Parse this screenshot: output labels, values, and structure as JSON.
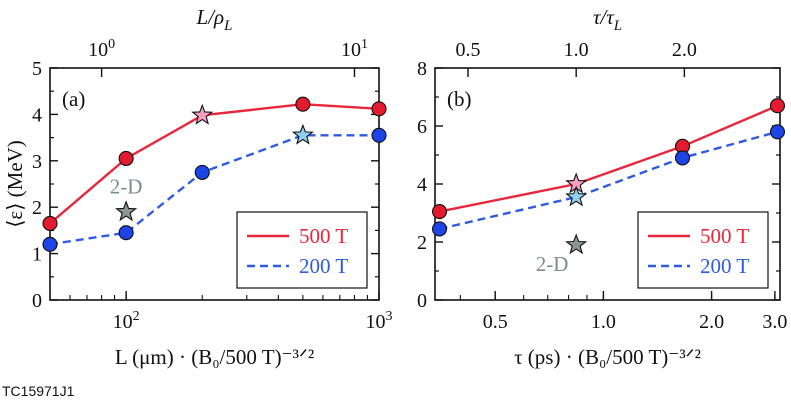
{
  "colors": {
    "red_line": "#e8273a",
    "blue_line": "#2d5be3",
    "red_marker": "#e31b2f",
    "blue_marker": "#1c44e6",
    "pink_star": "#f7a0c4",
    "light_blue_star": "#8fd0f0",
    "gray_star": "#8a9696",
    "gray_text": "#7d8d8d"
  },
  "caption": "TC15971J1",
  "chart_data": [
    {
      "id": "a",
      "type": "line",
      "panel_label": "(a)",
      "x_scale": "log",
      "xlim": [
        50,
        1000
      ],
      "ylim": [
        0,
        5
      ],
      "ylabel": "⟨ε⟩ (MeV)",
      "xlabel": "L (μm) · (B₀/500 T)⁻³ᐟ²",
      "top_xlabel": "L/ρL",
      "x_ticks": [
        {
          "v": 100,
          "base": "10",
          "exp": "2"
        },
        {
          "v": 1000,
          "base": "10",
          "exp": "3"
        }
      ],
      "y_ticks": [
        "0",
        "1",
        "2",
        "3",
        "4",
        "5"
      ],
      "top_ticks": [
        {
          "v": 80,
          "base": "10",
          "exp": "0"
        },
        {
          "v": 800,
          "base": "10",
          "exp": "1"
        }
      ],
      "series": [
        {
          "name": "500 T",
          "color": "red",
          "dash": false,
          "x": [
            50,
            100,
            200,
            500,
            1000
          ],
          "y": [
            1.65,
            3.05,
            3.98,
            4.22,
            4.12
          ],
          "star_index": 2
        },
        {
          "name": "200 T",
          "color": "blue",
          "dash": true,
          "x": [
            50,
            100,
            200,
            500,
            1000
          ],
          "y": [
            1.2,
            1.45,
            2.75,
            3.55,
            3.55
          ],
          "star_index": 3
        }
      ],
      "gray_star": {
        "x": 100,
        "y": 1.9
      },
      "annotation": {
        "text": "2-D",
        "x": 100,
        "y": 2.45
      }
    },
    {
      "id": "b",
      "type": "line",
      "panel_label": "(b)",
      "x_scale": "log",
      "xlim": [
        0.34,
        3.1
      ],
      "ylim": [
        0,
        8
      ],
      "ylabel": "",
      "xlabel": "τ (ps) · (B₀/500 T)⁻³ᐟ²",
      "top_xlabel": "τ/τL",
      "x_ticks": [
        {
          "v": 0.5,
          "t": "0.5"
        },
        {
          "v": 1.0,
          "t": "1.0"
        },
        {
          "v": 2.0,
          "t": "2.0"
        },
        {
          "v": 3.0,
          "t": "3.0"
        }
      ],
      "y_ticks": [
        "0",
        "2",
        "4",
        "6",
        "8"
      ],
      "top_ticks": [
        {
          "v": 0.42,
          "t": "0.5"
        },
        {
          "v": 0.84,
          "t": "1.0"
        },
        {
          "v": 1.68,
          "t": "2.0"
        }
      ],
      "series": [
        {
          "name": "500 T",
          "color": "red",
          "dash": false,
          "x": [
            0.35,
            0.84,
            1.66,
            3.05
          ],
          "y": [
            3.05,
            4.0,
            5.3,
            6.7
          ],
          "star_index": 1
        },
        {
          "name": "200 T",
          "color": "blue",
          "dash": true,
          "x": [
            0.35,
            0.84,
            1.66,
            3.05
          ],
          "y": [
            2.45,
            3.55,
            4.9,
            5.8
          ],
          "star_index": 1
        }
      ],
      "gray_star": {
        "x": 0.84,
        "y": 1.9
      },
      "annotation": {
        "text": "2-D",
        "x": 0.72,
        "y": 1.25
      }
    }
  ]
}
